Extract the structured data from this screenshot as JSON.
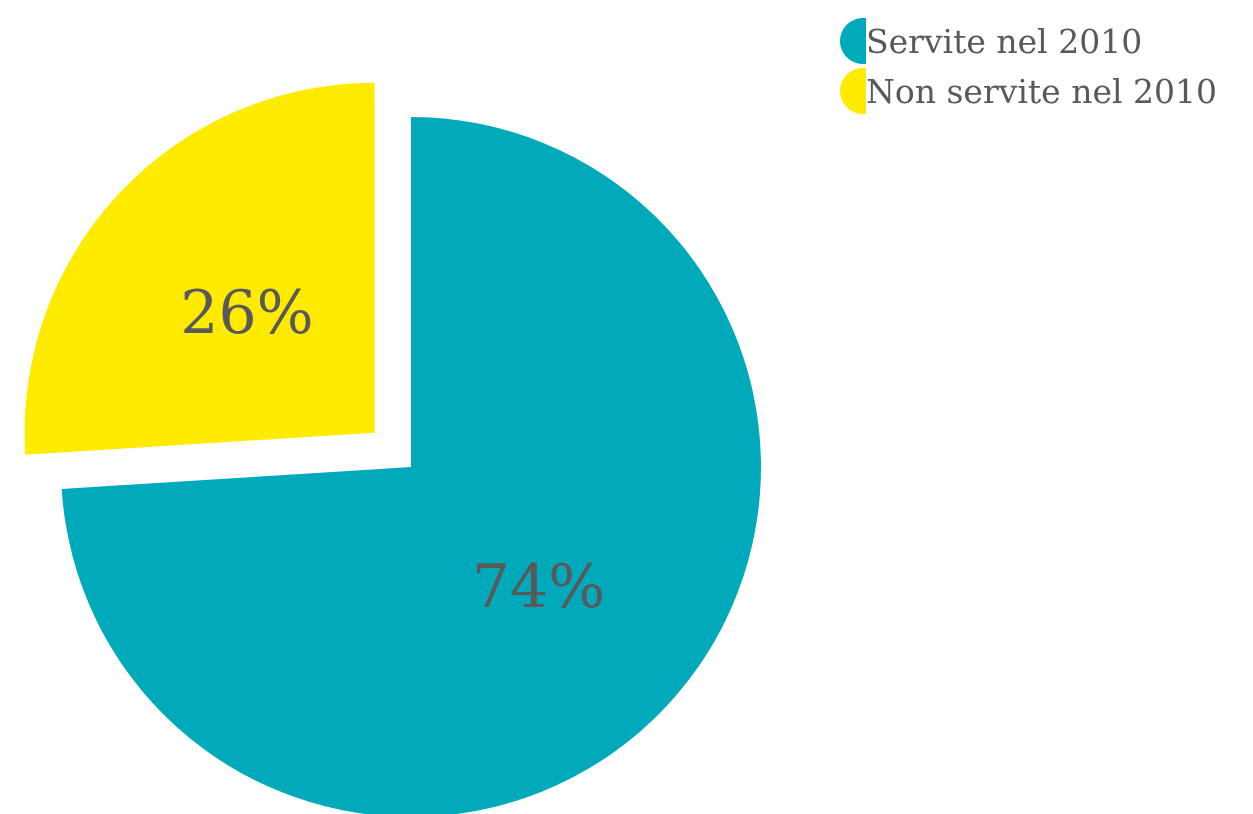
{
  "chart_data": {
    "type": "pie",
    "slices": [
      {
        "name": "Servite nel 2010",
        "value": 74,
        "label": "74%",
        "color": "#00AABB",
        "exploded": false
      },
      {
        "name": "Non servite nel 2010",
        "value": 26,
        "label": "26%",
        "color": "#FFEB00",
        "exploded": true
      }
    ],
    "legend_placement": "top-right"
  }
}
